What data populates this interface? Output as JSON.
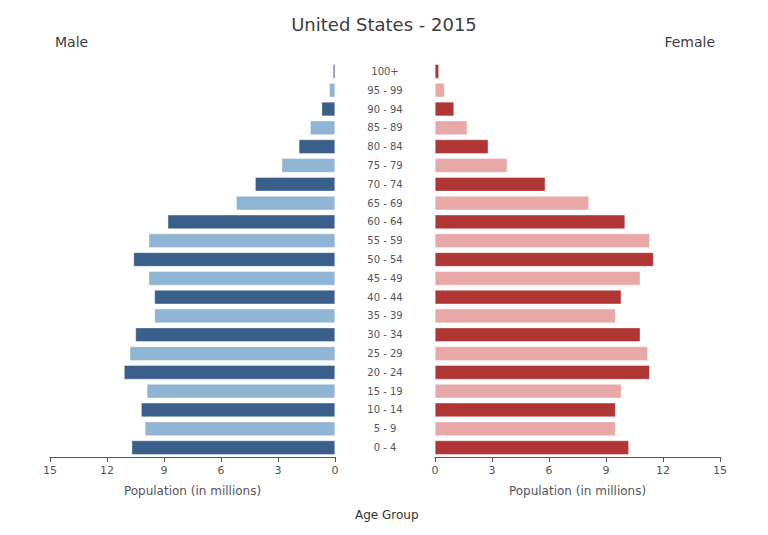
{
  "chart_data": {
    "type": "bar",
    "orientation": "horizontal",
    "title": "United States - 2015",
    "categories": [
      "0 - 4",
      "5 - 9",
      "10 - 14",
      "15 - 19",
      "20 - 24",
      "25 - 29",
      "30 - 34",
      "35 - 39",
      "40 - 44",
      "45 - 49",
      "50 - 54",
      "55 - 59",
      "60 - 64",
      "65 - 69",
      "70 - 74",
      "75 - 79",
      "80 - 84",
      "85 - 89",
      "90 - 94",
      "95 - 99",
      "100+"
    ],
    "series": [
      {
        "name": "Male",
        "values": [
          10.7,
          10.0,
          10.2,
          9.9,
          11.1,
          10.8,
          10.5,
          9.5,
          9.5,
          9.8,
          10.6,
          9.8,
          8.8,
          5.2,
          4.2,
          2.8,
          1.9,
          1.3,
          0.7,
          0.3,
          0.1
        ],
        "colors": [
          "#3a5f8a",
          "#90b4d4",
          "#3a5f8a",
          "#90b4d4",
          "#3a5f8a",
          "#90b4d4",
          "#3a5f8a",
          "#90b4d4",
          "#3a5f8a",
          "#90b4d4",
          "#3a5f8a",
          "#90b4d4",
          "#3a5f8a",
          "#90b4d4",
          "#3a5f8a",
          "#90b4d4",
          "#3a5f8a",
          "#90b4d4",
          "#3a5f8a",
          "#90b4d4",
          "#3a5f8a"
        ]
      },
      {
        "name": "Female",
        "values": [
          10.2,
          9.5,
          9.5,
          9.8,
          11.3,
          11.2,
          10.8,
          9.5,
          9.8,
          10.8,
          11.5,
          11.3,
          10.0,
          8.1,
          5.8,
          3.8,
          2.8,
          1.7,
          1.0,
          0.5,
          0.2
        ],
        "colors": [
          "#b03535",
          "#e8a8a8",
          "#b03535",
          "#e8a8a8",
          "#b03535",
          "#e8a8a8",
          "#b03535",
          "#e8a8a8",
          "#b03535",
          "#e8a8a8",
          "#b03535",
          "#e8a8a8",
          "#b03535",
          "#e8a8a8",
          "#b03535",
          "#e8a8a8",
          "#b03535",
          "#e8a8a8",
          "#b03535",
          "#e8a8a8",
          "#b03535"
        ]
      }
    ],
    "xlabel": "Population (in millions)",
    "ylabel": "Age Group",
    "xlim": [
      0,
      15
    ],
    "xticks": [
      0,
      3,
      6,
      9,
      12,
      15
    ],
    "grid": false
  }
}
